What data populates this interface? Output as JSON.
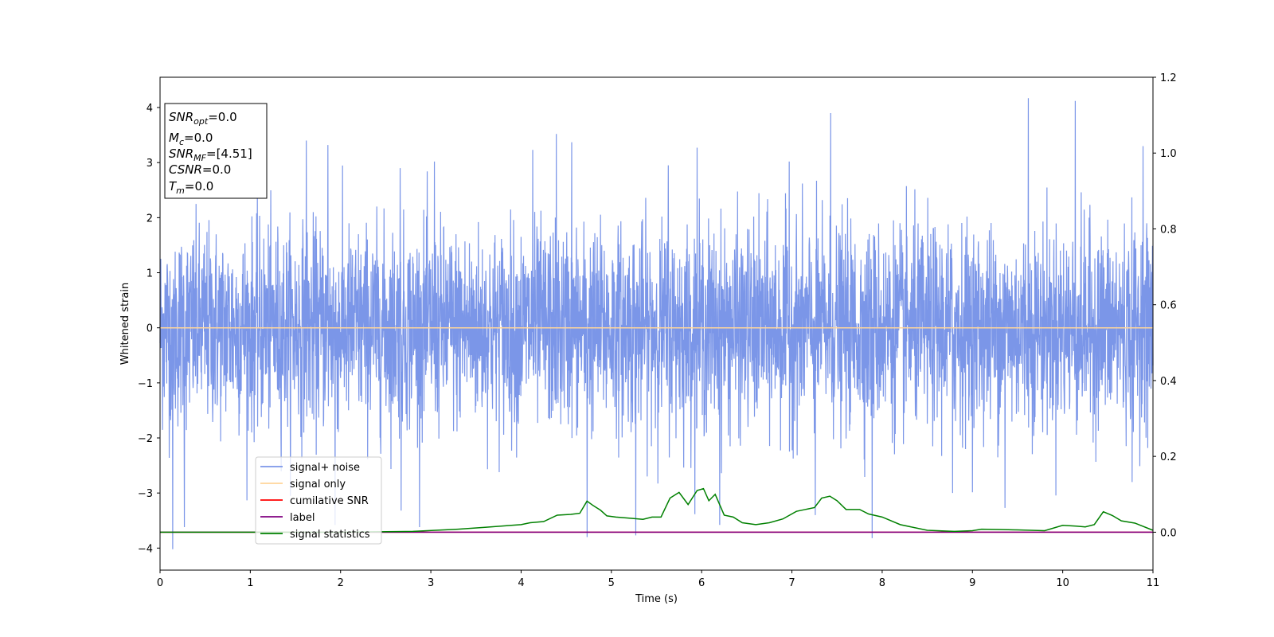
{
  "chart_data": {
    "type": "line",
    "xlabel": "Time (s)",
    "ylabel": "Whitened strain",
    "xlim": [
      0,
      11
    ],
    "ylim": [
      -4.4,
      4.55
    ],
    "y2lim": [
      -0.1,
      1.2
    ],
    "xticks": [
      "0",
      "1",
      "2",
      "3",
      "4",
      "5",
      "6",
      "7",
      "8",
      "9",
      "10",
      "11"
    ],
    "yticks": [
      "−4",
      "−3",
      "−2",
      "−1",
      "0",
      "1",
      "2",
      "3",
      "4"
    ],
    "y2ticks": [
      "0.0",
      "0.2",
      "0.4",
      "0.6",
      "0.8",
      "1.0",
      "1.2"
    ],
    "grid": false,
    "legend_position": "lower-left",
    "info_box": {
      "lines": [
        {
          "name": "SNR",
          "sub": "opt",
          "value": "=0.0"
        },
        {
          "name": "M",
          "sub": "c",
          "value": "=0.0"
        },
        {
          "name": "SNR",
          "sub": "MF",
          "value": "=[4.51]"
        },
        {
          "name": "CSNR",
          "sub": "",
          "value": "=0.0"
        },
        {
          "name": "T",
          "sub": "m",
          "value": "=0.0"
        }
      ]
    },
    "series": [
      {
        "name": "signal+ noise",
        "color": "#7b96e8",
        "axis": "left",
        "kind": "noise",
        "noise_sigma": 0.9,
        "t_range": [
          0,
          11
        ],
        "peaks": [
          {
            "x": 0.14,
            "y": -4.02
          },
          {
            "x": 0.27,
            "y": -3.62
          },
          {
            "x": 1.62,
            "y": 3.4
          },
          {
            "x": 1.86,
            "y": 3.32
          },
          {
            "x": 1.94,
            "y": -3.58
          },
          {
            "x": 2.67,
            "y": -3.32
          },
          {
            "x": 2.66,
            "y": 2.9
          },
          {
            "x": 3.04,
            "y": 3.02
          },
          {
            "x": 4.13,
            "y": 3.23
          },
          {
            "x": 4.39,
            "y": 3.52
          },
          {
            "x": 4.56,
            "y": 3.37
          },
          {
            "x": 4.73,
            "y": -3.8
          },
          {
            "x": 5.27,
            "y": -3.77
          },
          {
            "x": 5.63,
            "y": 2.95
          },
          {
            "x": 5.95,
            "y": 3.27
          },
          {
            "x": 6.2,
            "y": -3.58
          },
          {
            "x": 6.97,
            "y": 3.02
          },
          {
            "x": 7.26,
            "y": -3.4
          },
          {
            "x": 7.43,
            "y": 3.9
          },
          {
            "x": 7.89,
            "y": -3.82
          },
          {
            "x": 8.78,
            "y": -3.0
          },
          {
            "x": 9.36,
            "y": -3.27
          },
          {
            "x": 9.62,
            "y": 4.17
          },
          {
            "x": 10.14,
            "y": 4.12
          },
          {
            "x": 10.77,
            "y": -2.8
          },
          {
            "x": 10.89,
            "y": 3.3
          }
        ]
      },
      {
        "name": "signal only",
        "color": "#ffd59a",
        "axis": "left",
        "x": [
          0,
          11
        ],
        "y": [
          0,
          0
        ]
      },
      {
        "name": "cumilative SNR",
        "color": "#ff0000",
        "axis": "right",
        "x": [
          0,
          11
        ],
        "y": [
          0,
          0
        ]
      },
      {
        "name": "label",
        "color": "#800080",
        "axis": "right",
        "x": [
          0,
          11
        ],
        "y": [
          0,
          0
        ]
      },
      {
        "name": "signal statistics",
        "color": "#008000",
        "axis": "right",
        "x": [
          0,
          1,
          2,
          2.8,
          3.3,
          3.6,
          4.0,
          4.1,
          4.25,
          4.4,
          4.55,
          4.65,
          4.73,
          4.8,
          4.88,
          4.95,
          5.05,
          5.2,
          5.35,
          5.45,
          5.55,
          5.65,
          5.75,
          5.85,
          5.95,
          6.02,
          6.08,
          6.15,
          6.25,
          6.35,
          6.45,
          6.6,
          6.75,
          6.9,
          7.05,
          7.15,
          7.25,
          7.33,
          7.42,
          7.5,
          7.6,
          7.75,
          7.85,
          8.0,
          8.2,
          8.5,
          8.8,
          9.0,
          9.1,
          9.3,
          9.5,
          9.8,
          10.0,
          10.15,
          10.25,
          10.35,
          10.45,
          10.55,
          10.65,
          10.8,
          11.0
        ],
        "y": [
          0.0,
          0.0,
          0.0,
          0.002,
          0.008,
          0.013,
          0.02,
          0.025,
          0.028,
          0.045,
          0.047,
          0.05,
          0.082,
          0.07,
          0.058,
          0.043,
          0.04,
          0.037,
          0.034,
          0.04,
          0.04,
          0.09,
          0.105,
          0.073,
          0.11,
          0.115,
          0.083,
          0.1,
          0.045,
          0.04,
          0.025,
          0.02,
          0.025,
          0.035,
          0.055,
          0.06,
          0.065,
          0.09,
          0.095,
          0.083,
          0.06,
          0.06,
          0.048,
          0.04,
          0.02,
          0.005,
          0.002,
          0.004,
          0.008,
          0.007,
          0.006,
          0.004,
          0.018,
          0.016,
          0.014,
          0.02,
          0.054,
          0.044,
          0.03,
          0.024,
          0.005
        ]
      }
    ]
  }
}
